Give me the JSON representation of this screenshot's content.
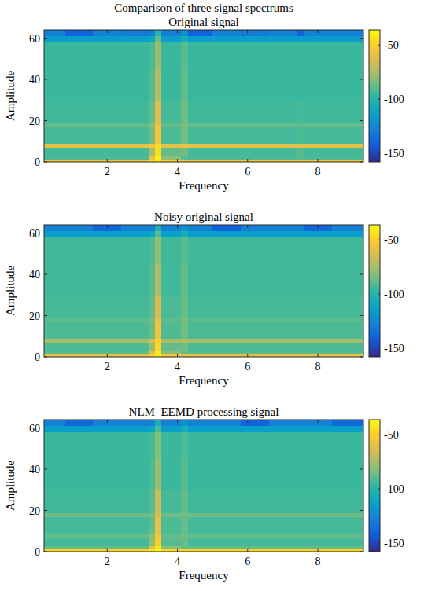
{
  "title": "Comparison of three signal spectrums",
  "chart_data": [
    {
      "type": "heatmap",
      "title": "Original signal",
      "x_label": "Frequency",
      "y_label": "Amplitude",
      "xlim": [
        0.2,
        9.3
      ],
      "ylim": [
        0,
        64
      ],
      "xticks": [
        2,
        4,
        6,
        8
      ],
      "yticks": [
        0,
        20,
        40,
        60
      ],
      "x_edges": [
        0.2,
        0.8,
        1.6,
        2.4,
        3.2,
        3.35,
        3.55,
        4.1,
        4.3,
        5.0,
        5.8,
        6.6,
        7.4,
        7.6,
        8.4,
        9.3
      ],
      "y_edges": [
        0,
        1.5,
        3,
        7,
        9,
        17,
        19,
        30,
        45,
        58,
        61,
        64
      ],
      "values": [
        [
          -55,
          -55,
          -55,
          -55,
          -45,
          -38,
          -50,
          -55,
          -55,
          -55,
          -55,
          -55,
          -55,
          -55,
          -55
        ],
        [
          -92,
          -92,
          -92,
          -92,
          -60,
          -40,
          -80,
          -90,
          -92,
          -92,
          -92,
          -92,
          -90,
          -92,
          -92
        ],
        [
          -93,
          -93,
          -93,
          -93,
          -75,
          -45,
          -88,
          -85,
          -93,
          -93,
          -93,
          -93,
          -90,
          -93,
          -93
        ],
        [
          -60,
          -60,
          -60,
          -60,
          -55,
          -45,
          -60,
          -58,
          -60,
          -60,
          -60,
          -60,
          -60,
          -60,
          -60
        ],
        [
          -93,
          -93,
          -93,
          -93,
          -85,
          -55,
          -92,
          -85,
          -93,
          -93,
          -93,
          -93,
          -92,
          -93,
          -93
        ],
        [
          -88,
          -88,
          -88,
          -88,
          -82,
          -58,
          -88,
          -84,
          -88,
          -88,
          -88,
          -88,
          -88,
          -88,
          -88
        ],
        [
          -94,
          -94,
          -94,
          -94,
          -88,
          -62,
          -93,
          -86,
          -94,
          -94,
          -94,
          -94,
          -93,
          -94,
          -94
        ],
        [
          -95,
          -95,
          -95,
          -95,
          -90,
          -72,
          -95,
          -88,
          -95,
          -95,
          -95,
          -95,
          -95,
          -95,
          -95
        ],
        [
          -95,
          -95,
          -95,
          -95,
          -92,
          -78,
          -95,
          -90,
          -95,
          -95,
          -95,
          -95,
          -95,
          -95,
          -95
        ],
        [
          -115,
          -115,
          -115,
          -115,
          -110,
          -88,
          -115,
          -105,
          -115,
          -115,
          -115,
          -115,
          -115,
          -115,
          -115
        ],
        [
          -128,
          -140,
          -128,
          -130,
          -128,
          -100,
          -128,
          -120,
          -140,
          -128,
          -130,
          -128,
          -140,
          -128,
          -128
        ]
      ],
      "color_range": [
        -158,
        -36
      ],
      "color_ticks": [
        -150,
        -100,
        -50
      ]
    },
    {
      "type": "heatmap",
      "title": "Noisy original signal",
      "x_label": "Frequency",
      "y_label": "Amplitude",
      "xlim": [
        0.2,
        9.3
      ],
      "ylim": [
        0,
        64
      ],
      "xticks": [
        2,
        4,
        6,
        8
      ],
      "yticks": [
        0,
        20,
        40,
        60
      ],
      "x_edges": [
        0.2,
        0.8,
        1.6,
        2.4,
        3.2,
        3.35,
        3.55,
        4.1,
        4.3,
        5.0,
        5.8,
        6.6,
        7.4,
        7.6,
        8.4,
        9.3
      ],
      "y_edges": [
        0,
        1.5,
        3,
        7,
        9,
        17,
        19,
        30,
        45,
        58,
        61,
        64
      ],
      "values": [
        [
          -58,
          -58,
          -58,
          -58,
          -48,
          -40,
          -52,
          -58,
          -58,
          -58,
          -58,
          -58,
          -58,
          -58,
          -58
        ],
        [
          -90,
          -90,
          -90,
          -90,
          -62,
          -42,
          -82,
          -88,
          -90,
          -90,
          -90,
          -90,
          -90,
          -90,
          -90
        ],
        [
          -92,
          -92,
          -92,
          -92,
          -78,
          -47,
          -88,
          -86,
          -92,
          -92,
          -92,
          -92,
          -92,
          -92,
          -92
        ],
        [
          -75,
          -75,
          -75,
          -75,
          -65,
          -48,
          -75,
          -72,
          -75,
          -75,
          -75,
          -75,
          -75,
          -75,
          -75
        ],
        [
          -92,
          -92,
          -92,
          -92,
          -86,
          -56,
          -91,
          -85,
          -92,
          -92,
          -92,
          -92,
          -92,
          -92,
          -92
        ],
        [
          -89,
          -89,
          -89,
          -89,
          -84,
          -60,
          -89,
          -85,
          -89,
          -89,
          -89,
          -89,
          -89,
          -89,
          -89
        ],
        [
          -93,
          -93,
          -93,
          -93,
          -88,
          -64,
          -92,
          -87,
          -93,
          -93,
          -93,
          -93,
          -93,
          -93,
          -93
        ],
        [
          -94,
          -94,
          -94,
          -94,
          -90,
          -74,
          -94,
          -88,
          -94,
          -94,
          -94,
          -94,
          -94,
          -94,
          -94
        ],
        [
          -94,
          -94,
          -94,
          -94,
          -91,
          -80,
          -94,
          -90,
          -94,
          -94,
          -94,
          -94,
          -94,
          -94,
          -94
        ],
        [
          -114,
          -114,
          -114,
          -114,
          -110,
          -90,
          -114,
          -105,
          -114,
          -114,
          -114,
          -114,
          -114,
          -114,
          -114
        ],
        [
          -128,
          -128,
          -138,
          -128,
          -128,
          -102,
          -128,
          -120,
          -128,
          -140,
          -128,
          -128,
          -128,
          -138,
          -128
        ]
      ],
      "color_range": [
        -158,
        -36
      ],
      "color_ticks": [
        -150,
        -100,
        -50
      ]
    },
    {
      "type": "heatmap",
      "title": "NLM–EEMD processing signal",
      "x_label": "Frequency",
      "y_label": "Amplitude",
      "xlim": [
        0.2,
        9.3
      ],
      "ylim": [
        0,
        64
      ],
      "xticks": [
        2,
        4,
        6,
        8
      ],
      "yticks": [
        0,
        20,
        40,
        60
      ],
      "x_edges": [
        0.2,
        0.8,
        1.6,
        2.4,
        3.2,
        3.35,
        3.55,
        4.1,
        4.3,
        5.0,
        5.8,
        6.6,
        7.4,
        7.6,
        8.4,
        9.3
      ],
      "y_edges": [
        0,
        1.5,
        3,
        7,
        9,
        17,
        19,
        30,
        45,
        58,
        61,
        64
      ],
      "values": [
        [
          -48,
          -48,
          -48,
          -48,
          -42,
          -36,
          -45,
          -48,
          -48,
          -48,
          -48,
          -48,
          -48,
          -48,
          -48
        ],
        [
          -88,
          -88,
          -88,
          -88,
          -60,
          -42,
          -82,
          -88,
          -88,
          -88,
          -88,
          -88,
          -88,
          -88,
          -88
        ],
        [
          -93,
          -93,
          -93,
          -93,
          -80,
          -50,
          -90,
          -88,
          -93,
          -93,
          -93,
          -93,
          -93,
          -93,
          -93
        ],
        [
          -88,
          -88,
          -88,
          -88,
          -80,
          -55,
          -88,
          -86,
          -88,
          -88,
          -88,
          -88,
          -88,
          -88,
          -88
        ],
        [
          -93,
          -93,
          -93,
          -93,
          -88,
          -60,
          -92,
          -88,
          -93,
          -93,
          -93,
          -93,
          -93,
          -93,
          -93
        ],
        [
          -86,
          -86,
          -86,
          -86,
          -84,
          -64,
          -86,
          -85,
          -86,
          -86,
          -86,
          -86,
          -86,
          -86,
          -86
        ],
        [
          -94,
          -94,
          -94,
          -94,
          -90,
          -68,
          -93,
          -88,
          -94,
          -94,
          -94,
          -94,
          -94,
          -94,
          -94
        ],
        [
          -95,
          -95,
          -95,
          -95,
          -92,
          -78,
          -95,
          -90,
          -95,
          -95,
          -95,
          -95,
          -95,
          -95,
          -95
        ],
        [
          -95,
          -95,
          -95,
          -95,
          -93,
          -82,
          -95,
          -92,
          -95,
          -95,
          -95,
          -95,
          -95,
          -95,
          -95
        ],
        [
          -114,
          -114,
          -114,
          -114,
          -110,
          -92,
          -114,
          -106,
          -114,
          -114,
          -114,
          -114,
          -114,
          -114,
          -114
        ],
        [
          -128,
          -138,
          -128,
          -128,
          -128,
          -104,
          -128,
          -120,
          -128,
          -128,
          -140,
          -128,
          -128,
          -128,
          -138
        ]
      ],
      "color_range": [
        -158,
        -36
      ],
      "color_ticks": [
        -150,
        -100,
        -50
      ]
    }
  ]
}
